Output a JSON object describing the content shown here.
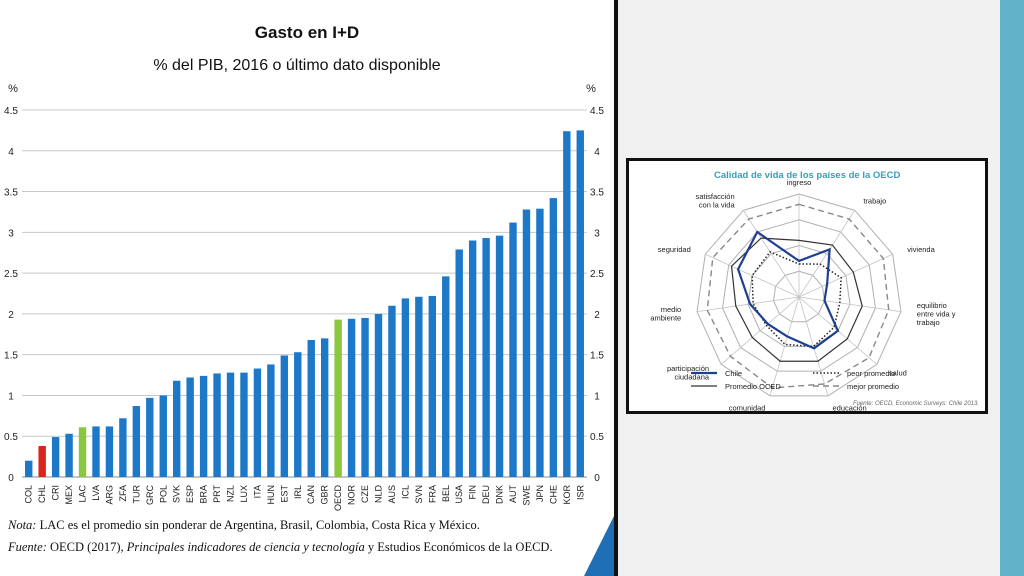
{
  "chart_data": [
    {
      "type": "bar",
      "title": "Gasto en I+D",
      "subtitle": "% del PIB, 2016 o último dato disponible",
      "ylabel_left": "%",
      "ylabel_right": "%",
      "ylim": [
        0,
        4.5
      ],
      "yticks": [
        "0",
        "0.5",
        "1",
        "1.5",
        "2",
        "2.5",
        "3",
        "3.5",
        "4",
        "4.5"
      ],
      "grid": true,
      "categories": [
        "COL",
        "CHL",
        "CRI",
        "MEX",
        "LAC",
        "LVA",
        "ARG",
        "ZFA",
        "TUR",
        "GRC",
        "POL",
        "SVK",
        "ESP",
        "BRA",
        "PRT",
        "NZL",
        "LUX",
        "ITA",
        "HUN",
        "EST",
        "IRL",
        "CAN",
        "GBR",
        "OECD",
        "NOR",
        "CZE",
        "NLD",
        "AUS",
        "ICL",
        "SVN",
        "FRA",
        "BEL",
        "USA",
        "FIN",
        "DEU",
        "DNK",
        "AUT",
        "SWE",
        "JPN",
        "CHE",
        "KOR",
        "ISR"
      ],
      "values": [
        0.2,
        0.38,
        0.49,
        0.53,
        0.61,
        0.62,
        0.62,
        0.72,
        0.87,
        0.97,
        1.0,
        1.18,
        1.22,
        1.24,
        1.27,
        1.28,
        1.28,
        1.33,
        1.38,
        1.49,
        1.53,
        1.68,
        1.7,
        1.93,
        1.94,
        1.95,
        2.0,
        2.1,
        2.19,
        2.21,
        2.22,
        2.46,
        2.79,
        2.9,
        2.93,
        2.96,
        3.12,
        3.28,
        3.29,
        3.42,
        4.24,
        4.25
      ],
      "colors": {
        "default": "#1e78c8",
        "CHL": "#d9261c",
        "LAC": "#8cc63f",
        "OECD": "#8cc63f"
      }
    },
    {
      "type": "radar",
      "title": "Calidad de vida de los países de la OECD",
      "axes": [
        "ingreso",
        "trabajo",
        "vivienda",
        "equilibrio entre vida y trabajo",
        "salud",
        "educación",
        "comunidad",
        "participación ciudadana",
        "medio ambiente",
        "seguridad",
        "satisfacción con la vida"
      ],
      "axis_label_lines": [
        [
          "ingreso"
        ],
        [
          "trabajo"
        ],
        [
          "vivienda"
        ],
        [
          "equilibrio",
          "entre vida y",
          "trabajo"
        ],
        [
          "salud"
        ],
        [
          "educación"
        ],
        [
          "comunidad"
        ],
        [
          "participación",
          "ciudadana"
        ],
        [
          "medio",
          "ambiente"
        ],
        [
          "seguridad"
        ],
        [
          "satisfacción",
          "con la vida"
        ]
      ],
      "max": 10,
      "series": [
        {
          "name": "Chile",
          "values": [
            3.5,
            5.5,
            3.0,
            2.5,
            5.0,
            5.2,
            4.0,
            4.0,
            4.8,
            6.5,
            7.5
          ],
          "color": "#1f3f8f",
          "style": "solid-thick"
        },
        {
          "name": "Promedio OCED",
          "values": [
            5.5,
            6.0,
            5.8,
            6.2,
            6.2,
            6.5,
            6.5,
            6.0,
            6.2,
            7.2,
            6.8
          ],
          "color": "#333333",
          "style": "solid"
        },
        {
          "name": "peor promedio",
          "values": [
            3.2,
            3.8,
            4.5,
            4.0,
            4.5,
            5.0,
            4.8,
            4.2,
            4.5,
            5.0,
            5.2
          ],
          "color": "#222222",
          "style": "dotted"
        },
        {
          "name": "mejor promedio",
          "values": [
            9.0,
            9.0,
            9.0,
            8.8,
            9.0,
            8.8,
            9.2,
            8.8,
            9.0,
            9.2,
            9.0
          ],
          "color": "#888888",
          "style": "dashed"
        }
      ],
      "source": "Fuente: OECD, Economic Surveys: Chile 2013."
    }
  ],
  "notes": {
    "nota_label": "Nota:",
    "nota_text": "LAC es el promedio sin ponderar de Argentina, Brasil, Colombia, Costa Rica y México.",
    "fuente_label": "Fuente:",
    "fuente_pre": "OECD (2017),",
    "fuente_italic": "Principales indicadores de ciencia y tecnología",
    "fuente_post": "y Estudios Económicos de la OECD."
  },
  "colors": {
    "accent_bar": "#62b3c9",
    "corner_accent": "#1e6fb5"
  }
}
